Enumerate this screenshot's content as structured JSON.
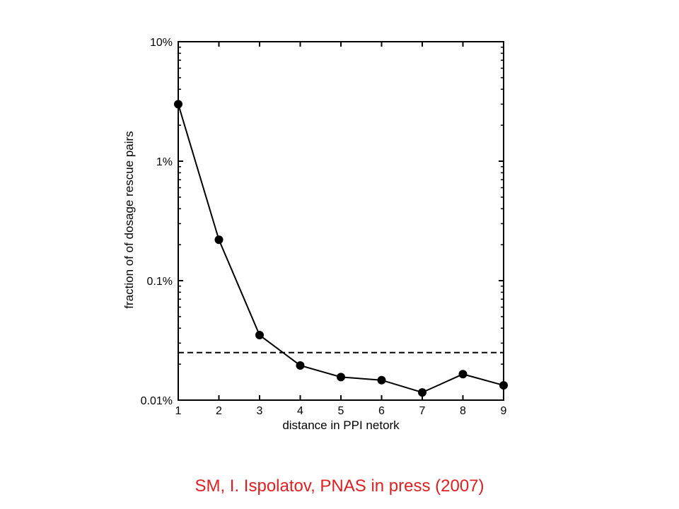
{
  "chart_data": {
    "type": "line",
    "xlabel": "distance in PPI netork",
    "ylabel": "fraction of of dosage rescue pairs",
    "x": [
      1,
      2,
      3,
      4,
      5,
      6,
      7,
      8,
      9
    ],
    "series": [
      {
        "values": [
          3.0,
          0.22,
          0.035,
          0.0195,
          0.0156,
          0.0147,
          0.0116,
          0.0165,
          0.0133
        ]
      }
    ],
    "reference_line": {
      "y": 0.025,
      "style": "dashed"
    },
    "xlim": [
      1,
      9
    ],
    "ylim": [
      0.01,
      10
    ],
    "yscale": "log",
    "xticks": [
      "1",
      "2",
      "3",
      "4",
      "5",
      "6",
      "7",
      "8",
      "9"
    ],
    "yticks": [
      {
        "value": 0.01,
        "label": "0.01%"
      },
      {
        "value": 0.1,
        "label": "0.1%"
      },
      {
        "value": 1,
        "label": "1%"
      },
      {
        "value": 10,
        "label": "10%"
      }
    ],
    "grid": false,
    "line_color": "#000000",
    "marker": "filled-circle"
  },
  "caption": "SM, I. Ispolatov, PNAS in press (2007)",
  "caption_color": "#e02020"
}
